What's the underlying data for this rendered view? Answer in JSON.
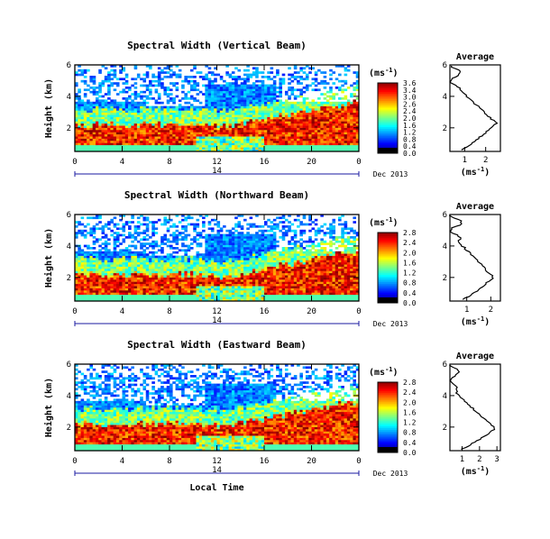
{
  "chart_data": [
    {
      "type": "heatmap",
      "title": "Spectral Width (Vertical Beam)",
      "ylabel": "Height (km)",
      "xlim": [
        0,
        24
      ],
      "ylim": [
        0.5,
        6
      ],
      "xticks": [
        "0",
        "4",
        "8",
        "12",
        "16",
        "20",
        "0"
      ],
      "yticks": [
        "2",
        "4",
        "6"
      ],
      "date_label": "14",
      "date_suffix": "Dec 2013",
      "colorbar": {
        "unit": "(ms⁻¹)",
        "ticks": [
          "3.6",
          "3.4",
          "3.0",
          "2.6",
          "2.4",
          "2.0",
          "1.6",
          "1.2",
          "0.8",
          "0.4",
          "0.0"
        ],
        "range": [
          0,
          3.6
        ]
      },
      "average": {
        "title": "Average",
        "xlabel": "(ms⁻¹)",
        "xticks": [
          "1",
          "2"
        ],
        "xlim": [
          0.3,
          2.7
        ],
        "yticks": [
          "2",
          "4",
          "6"
        ],
        "ylim": [
          0.5,
          6
        ],
        "peak_height": 2.3,
        "peak_value": 2.5
      }
    },
    {
      "type": "heatmap",
      "title": "Spectral Width (Northward Beam)",
      "ylabel": "Height (km)",
      "xlim": [
        0,
        24
      ],
      "ylim": [
        0.5,
        6
      ],
      "xticks": [
        "0",
        "4",
        "8",
        "12",
        "16",
        "20",
        "0"
      ],
      "yticks": [
        "2",
        "4",
        "6"
      ],
      "date_label": "14",
      "date_suffix": "Dec 2013",
      "colorbar": {
        "unit": "(ms⁻¹)",
        "ticks": [
          "2.8",
          "2.4",
          "2.0",
          "1.6",
          "1.2",
          "0.8",
          "0.4",
          "0.0"
        ],
        "range": [
          0,
          2.8
        ]
      },
      "average": {
        "title": "Average",
        "xlabel": "(ms⁻¹)",
        "xticks": [
          "1",
          "2"
        ],
        "xlim": [
          0.3,
          2.4
        ],
        "yticks": [
          "2",
          "4",
          "6"
        ],
        "ylim": [
          0.5,
          6
        ],
        "peak_height": 2.0,
        "peak_value": 2.1
      }
    },
    {
      "type": "heatmap",
      "title": "Spectral Width (Eastward Beam)",
      "ylabel": "Height (km)",
      "xlabel": "Local Time",
      "xlim": [
        0,
        24
      ],
      "ylim": [
        0.5,
        6
      ],
      "xticks": [
        "0",
        "4",
        "8",
        "12",
        "16",
        "20",
        "0"
      ],
      "yticks": [
        "2",
        "4",
        "6"
      ],
      "date_label": "14",
      "date_suffix": "Dec 2013",
      "colorbar": {
        "unit": "(ms⁻¹)",
        "ticks": [
          "2.8",
          "2.4",
          "2.0",
          "1.6",
          "1.2",
          "0.8",
          "0.4",
          "0.0"
        ],
        "range": [
          0,
          2.8
        ]
      },
      "average": {
        "title": "Average",
        "xlabel": "(ms⁻¹)",
        "xticks": [
          "1",
          "2",
          "3"
        ],
        "xlim": [
          0.3,
          3.2
        ],
        "yticks": [
          "2",
          "4",
          "6"
        ],
        "ylim": [
          0.5,
          6
        ],
        "peak_height": 1.9,
        "peak_value": 2.9
      }
    }
  ]
}
